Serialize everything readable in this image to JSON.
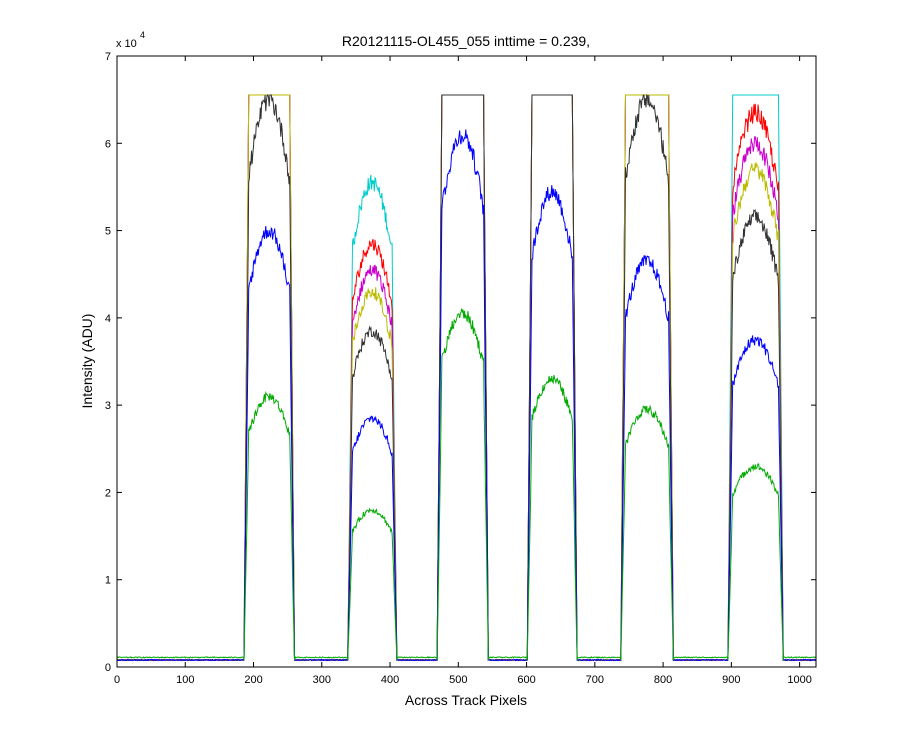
{
  "chart_data": {
    "type": "line",
    "title": "R20121115-OL455_055 inttime = 0.239,",
    "xlabel": "Across Track Pixels",
    "ylabel": "Intensity (ADU)",
    "y_exponent_label": "x 10",
    "y_exponent": "4",
    "xlim": [
      0,
      1024
    ],
    "ylim": [
      0,
      70000
    ],
    "x_ticks": [
      0,
      100,
      200,
      300,
      400,
      500,
      600,
      700,
      800,
      900,
      1000
    ],
    "y_ticks": [
      0,
      10000,
      20000,
      30000,
      40000,
      50000,
      60000,
      70000
    ],
    "y_tick_labels": [
      "0",
      "1",
      "2",
      "3",
      "4",
      "5",
      "6",
      "7"
    ],
    "grid": false,
    "legend": "none",
    "baseline": 800,
    "saturation": 65535,
    "series_colors": [
      "#00aa00",
      "#0000ff",
      "#333333",
      "#bbbb00",
      "#cc00cc",
      "#ff0000",
      "#00cccc"
    ],
    "blocks": [
      {
        "x_start": 193,
        "x_end": 253,
        "peaks": [
          31000,
          50000,
          65000,
          65535,
          65535,
          65535,
          65535
        ]
      },
      {
        "x_start": 345,
        "x_end": 403,
        "peaks": [
          18000,
          28500,
          38500,
          43000,
          45500,
          48500,
          55500
        ]
      },
      {
        "x_start": 476,
        "x_end": 537,
        "peaks": [
          40500,
          61000,
          65535,
          65535,
          65535,
          65535,
          65535
        ]
      },
      {
        "x_start": 608,
        "x_end": 667,
        "peaks": [
          33000,
          54500,
          65535,
          65535,
          65535,
          65535,
          65535
        ]
      },
      {
        "x_start": 745,
        "x_end": 808,
        "peaks": [
          29500,
          46500,
          65000,
          65535,
          65535,
          65535,
          65535
        ]
      },
      {
        "x_start": 902,
        "x_end": 969,
        "peaks": [
          23000,
          37500,
          51500,
          57000,
          60000,
          63500,
          65535
        ]
      }
    ]
  }
}
